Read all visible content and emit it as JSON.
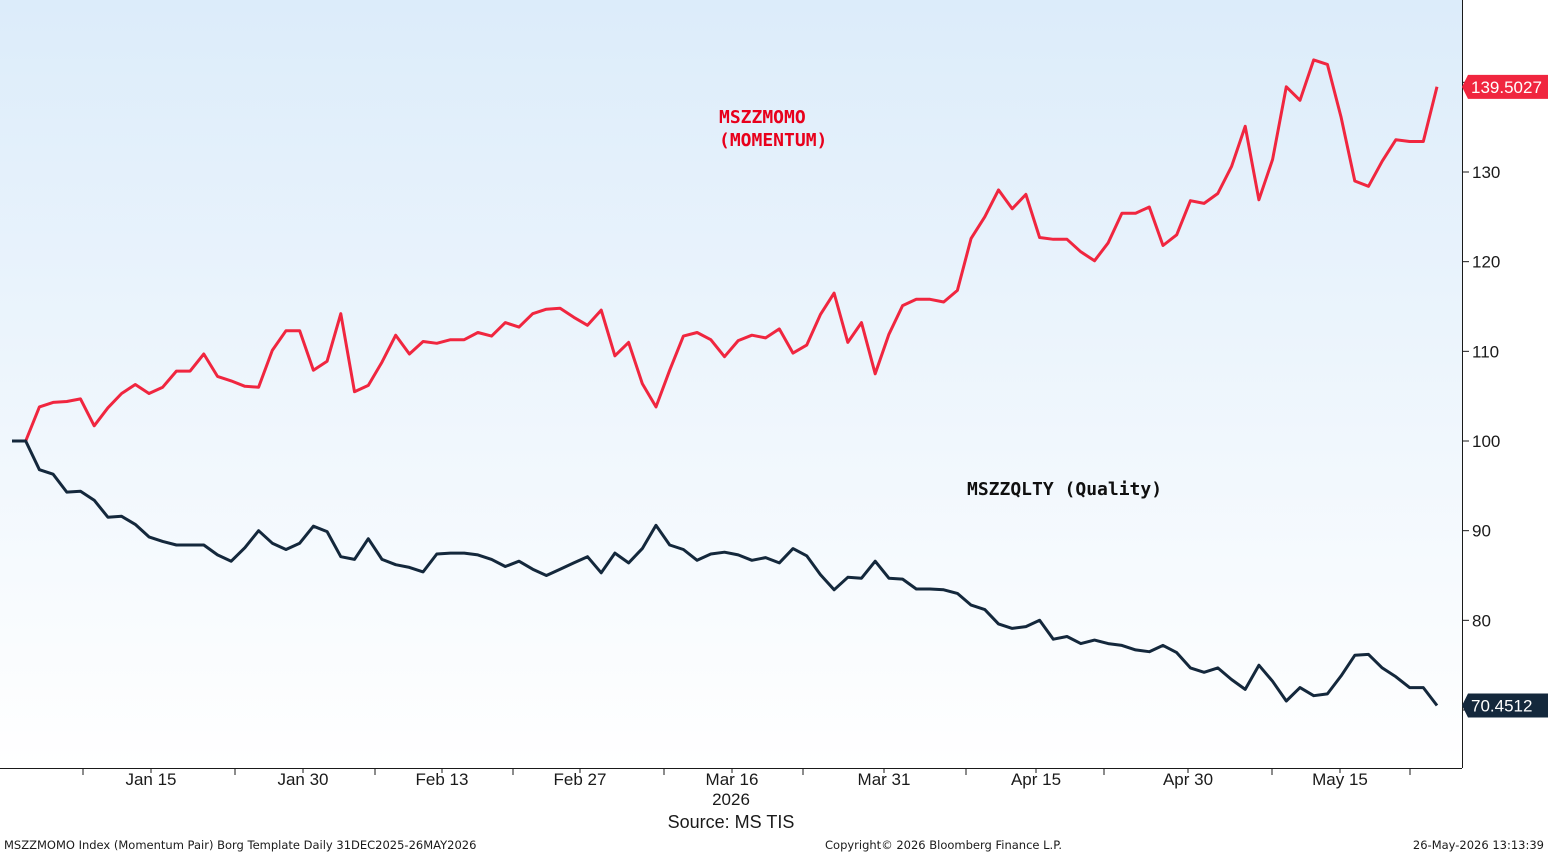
{
  "chart_data": {
    "type": "line",
    "ylim": [
      62,
      148
    ],
    "yticks": [
      80,
      90,
      100,
      110,
      120,
      130
    ],
    "xlim": [
      0,
      113
    ],
    "xticks": [
      {
        "label": "Jan 15",
        "x": 11
      },
      {
        "label": "Jan 30",
        "x": 23
      },
      {
        "label": "Feb 13",
        "x": 34
      },
      {
        "label": "Feb 27",
        "x": 45
      },
      {
        "label": "Mar 16",
        "x": 57
      },
      {
        "label": "Mar 31",
        "x": 69
      },
      {
        "label": "Apr 15",
        "x": 81
      },
      {
        "label": "Apr 30",
        "x": 93
      },
      {
        "label": "May 15",
        "x": 105
      }
    ],
    "year_label": "2026",
    "grid": false,
    "series": [
      {
        "name": "MSZZMOMO (MOMENTUM)",
        "color": "#f0263f",
        "last_value": "139.5027",
        "values": [
          100,
          100,
          103.8,
          104.3,
          104.4,
          104.7,
          101.7,
          103.7,
          105.3,
          106.3,
          105.3,
          106.0,
          107.8,
          107.8,
          109.7,
          107.2,
          106.7,
          106.1,
          106.0,
          110.1,
          112.3,
          112.3,
          107.9,
          108.9,
          114.2,
          105.5,
          106.2,
          108.8,
          111.8,
          109.7,
          111.1,
          110.9,
          111.3,
          111.3,
          112.1,
          111.7,
          113.2,
          112.7,
          114.2,
          114.7,
          114.8,
          113.8,
          112.9,
          114.6,
          109.5,
          111.0,
          106.4,
          103.8,
          107.9,
          111.7,
          112.1,
          111.3,
          109.4,
          111.2,
          111.8,
          111.5,
          112.5,
          109.8,
          110.7,
          114.1,
          116.5,
          111.0,
          113.2,
          107.5,
          111.9,
          115.1,
          115.8,
          115.8,
          115.5,
          116.8,
          122.6,
          125.0,
          128.0,
          125.9,
          127.5,
          122.7,
          122.5,
          122.5,
          121.1,
          120.1,
          122.1,
          125.4,
          125.4,
          126.1,
          121.8,
          123.0,
          126.8,
          126.5,
          127.6,
          130.6,
          135.1,
          126.9,
          131.4,
          139.5,
          138.0,
          142.5,
          142.0,
          136.1,
          129.0,
          128.4,
          131.2,
          133.6,
          133.4,
          133.4,
          139.5
        ]
      },
      {
        "name": "MSZZQLTY (Quality)",
        "color": "#14283c",
        "last_value": "70.4512",
        "values": [
          100,
          100,
          96.8,
          96.3,
          94.3,
          94.4,
          93.4,
          91.5,
          91.6,
          90.7,
          89.3,
          88.8,
          88.4,
          88.4,
          88.4,
          87.3,
          86.6,
          88.1,
          90.0,
          88.6,
          87.9,
          88.6,
          90.5,
          89.9,
          87.1,
          86.8,
          89.1,
          86.8,
          86.2,
          85.9,
          85.4,
          87.4,
          87.5,
          87.5,
          87.3,
          86.8,
          86.0,
          86.6,
          85.7,
          85.0,
          85.7,
          86.4,
          87.1,
          85.3,
          87.5,
          86.4,
          88.0,
          90.6,
          88.4,
          87.9,
          86.7,
          87.4,
          87.6,
          87.3,
          86.7,
          87.0,
          86.4,
          88.0,
          87.2,
          85.1,
          83.4,
          84.8,
          84.7,
          86.6,
          84.7,
          84.6,
          83.5,
          83.5,
          83.4,
          83.0,
          81.7,
          81.2,
          79.6,
          79.1,
          79.3,
          80.0,
          77.9,
          78.2,
          77.4,
          77.8,
          77.4,
          77.2,
          76.7,
          76.5,
          77.2,
          76.4,
          74.7,
          74.2,
          74.7,
          73.4,
          72.3,
          75.0,
          73.2,
          71.0,
          72.5,
          71.6,
          71.8,
          73.8,
          76.1,
          76.2,
          74.7,
          73.7,
          72.5,
          72.5,
          70.5
        ]
      }
    ]
  },
  "labels": {
    "momo_line1": "MSZZMOMO",
    "momo_line2": "(MOMENTUM)",
    "qlty": "MSZZQLTY (Quality)"
  },
  "footer": {
    "source": "Source: MS TIS",
    "left": "MSZZMOMO Index (Momentum Pair) Borg Template Daily 31DEC2025-26MAY2026",
    "center": "Copyright© 2026 Bloomberg Finance L.P.",
    "right": "26-May-2026 13:13:39"
  }
}
